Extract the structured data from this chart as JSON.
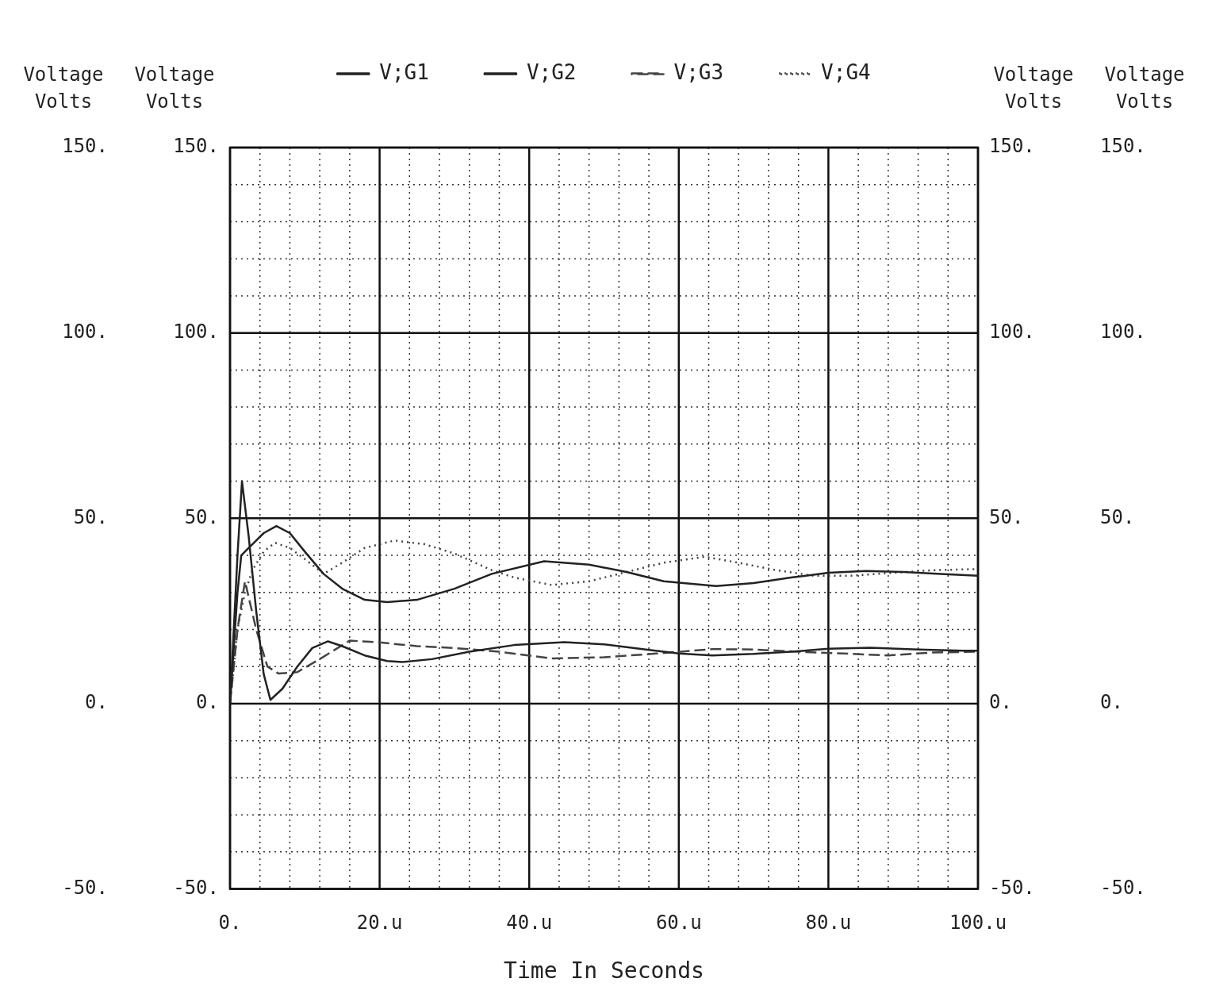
{
  "chart_data": {
    "type": "line",
    "xlabel": "Time In Seconds",
    "ylabel": "Voltage\nVolts",
    "y2label": "Voltage\nVolts",
    "y3label": "Voltage\nVolts",
    "xlim": [
      0,
      100
    ],
    "xticks": [
      {
        "value": 0,
        "label": "0."
      },
      {
        "value": 4,
        "label": null
      },
      {
        "value": 8,
        "label": null
      },
      {
        "value": 12,
        "label": null
      },
      {
        "value": 16,
        "label": null
      },
      {
        "value": 20,
        "label": "20.u"
      },
      {
        "value": 24,
        "label": null
      },
      {
        "value": 28,
        "label": null
      },
      {
        "value": 32,
        "label": null
      },
      {
        "value": 36,
        "label": null
      },
      {
        "value": 40,
        "label": "40.u"
      },
      {
        "value": 44,
        "label": null
      },
      {
        "value": 48,
        "label": null
      },
      {
        "value": 52,
        "label": null
      },
      {
        "value": 56,
        "label": null
      },
      {
        "value": 60,
        "label": "60.u"
      },
      {
        "value": 64,
        "label": null
      },
      {
        "value": 68,
        "label": null
      },
      {
        "value": 72,
        "label": null
      },
      {
        "value": 76,
        "label": null
      },
      {
        "value": 80,
        "label": "80.u"
      },
      {
        "value": 84,
        "label": null
      },
      {
        "value": 88,
        "label": null
      },
      {
        "value": 92,
        "label": null
      },
      {
        "value": 96,
        "label": null
      },
      {
        "value": 100,
        "label": "100.u"
      }
    ],
    "ylim": [
      -50,
      150
    ],
    "yticks": [
      {
        "value": -50,
        "label": "-50."
      },
      {
        "value": -40,
        "label": null
      },
      {
        "value": -30,
        "label": null
      },
      {
        "value": -20,
        "label": null
      },
      {
        "value": -10,
        "label": null
      },
      {
        "value": 0,
        "label": "0."
      },
      {
        "value": 10,
        "label": null
      },
      {
        "value": 20,
        "label": null
      },
      {
        "value": 30,
        "label": null
      },
      {
        "value": 40,
        "label": null
      },
      {
        "value": 50,
        "label": "50."
      },
      {
        "value": 60,
        "label": null
      },
      {
        "value": 70,
        "label": null
      },
      {
        "value": 80,
        "label": null
      },
      {
        "value": 90,
        "label": null
      },
      {
        "value": 100,
        "label": "100."
      },
      {
        "value": 110,
        "label": null
      },
      {
        "value": 120,
        "label": null
      },
      {
        "value": 130,
        "label": null
      },
      {
        "value": 140,
        "label": null
      },
      {
        "value": 150,
        "label": "150."
      }
    ],
    "y2lim": [
      -50,
      150
    ],
    "y2ticks": [
      {
        "value": -50,
        "label": "-50."
      },
      {
        "value": 0,
        "label": "0."
      },
      {
        "value": 50,
        "label": "50."
      },
      {
        "value": 100,
        "label": "100."
      },
      {
        "value": 150,
        "label": "150."
      }
    ],
    "y3lim": [
      -50,
      150
    ],
    "y3ticks": [
      {
        "value": -50,
        "label": "-50."
      },
      {
        "value": 0,
        "label": "0."
      },
      {
        "value": 50,
        "label": "50."
      },
      {
        "value": 100,
        "label": "100."
      },
      {
        "value": 150,
        "label": "150."
      }
    ],
    "grid": true,
    "legend": "top",
    "marker": "none",
    "series": [
      {
        "name": "V;G1",
        "color": "#222222",
        "line_style": "solid",
        "x": [
          0,
          1,
          1.6,
          2.5,
          3.5,
          4.5,
          5.4,
          7,
          9,
          11,
          13.1,
          15,
          18,
          21,
          23,
          27,
          32,
          38,
          44.7,
          50,
          56,
          60,
          64.5,
          70,
          75,
          80,
          85.6,
          92,
          98,
          100
        ],
        "values": [
          0,
          40,
          60,
          45,
          25,
          8,
          1,
          4,
          10,
          15,
          16.8,
          15.5,
          13,
          11.5,
          11.2,
          12,
          14,
          15.8,
          16.6,
          16,
          14.5,
          13.5,
          13,
          13.4,
          14,
          14.8,
          15.1,
          14.6,
          14.3,
          14.3
        ]
      },
      {
        "name": "V;G2",
        "color": "#222222",
        "line_style": "solid",
        "x": [
          0,
          1,
          1.5,
          2.5,
          3.5,
          4.5,
          6.2,
          8,
          10,
          12.5,
          15,
          18,
          21,
          25,
          30,
          35,
          42,
          48,
          53,
          58,
          65,
          70,
          75,
          80,
          85,
          90,
          95,
          100
        ],
        "values": [
          0,
          30,
          40,
          42,
          44,
          46,
          47.9,
          46,
          41,
          35,
          31,
          28,
          27.4,
          28,
          31,
          35,
          38.4,
          37.5,
          35.5,
          33,
          31.7,
          32.5,
          34,
          35.3,
          35.8,
          35.5,
          35,
          34.5
        ]
      },
      {
        "name": "V;G3",
        "color": "#444444",
        "line_style": "dashed",
        "x": [
          0,
          1,
          2,
          3.5,
          5,
          6.5,
          9,
          12,
          16,
          20,
          25,
          30,
          36,
          43,
          50,
          57,
          64.5,
          70,
          76,
          82,
          88,
          94,
          100
        ],
        "values": [
          0,
          20,
          33,
          20,
          10,
          8.1,
          8.5,
          12,
          17,
          16.5,
          15.5,
          15,
          14,
          12.2,
          12.5,
          13.5,
          14.7,
          14.6,
          14,
          13.5,
          13,
          13.8,
          14
        ]
      },
      {
        "name": "V;G4",
        "color": "#444444",
        "line_style": "dotted",
        "x": [
          0,
          1,
          2,
          3,
          4.5,
          6,
          8,
          10,
          12.5,
          15,
          18,
          22,
          26,
          30,
          35,
          38,
          43,
          48,
          53,
          58,
          63.5,
          68,
          73,
          78,
          83,
          88,
          94,
          100
        ],
        "values": [
          0,
          20,
          30,
          36,
          41,
          43.4,
          42,
          39,
          35,
          38,
          42,
          44,
          43,
          40.5,
          36,
          34,
          32,
          33,
          35.5,
          38,
          39.6,
          38,
          36,
          34.5,
          34.5,
          35.2,
          36,
          36.3
        ]
      }
    ]
  }
}
